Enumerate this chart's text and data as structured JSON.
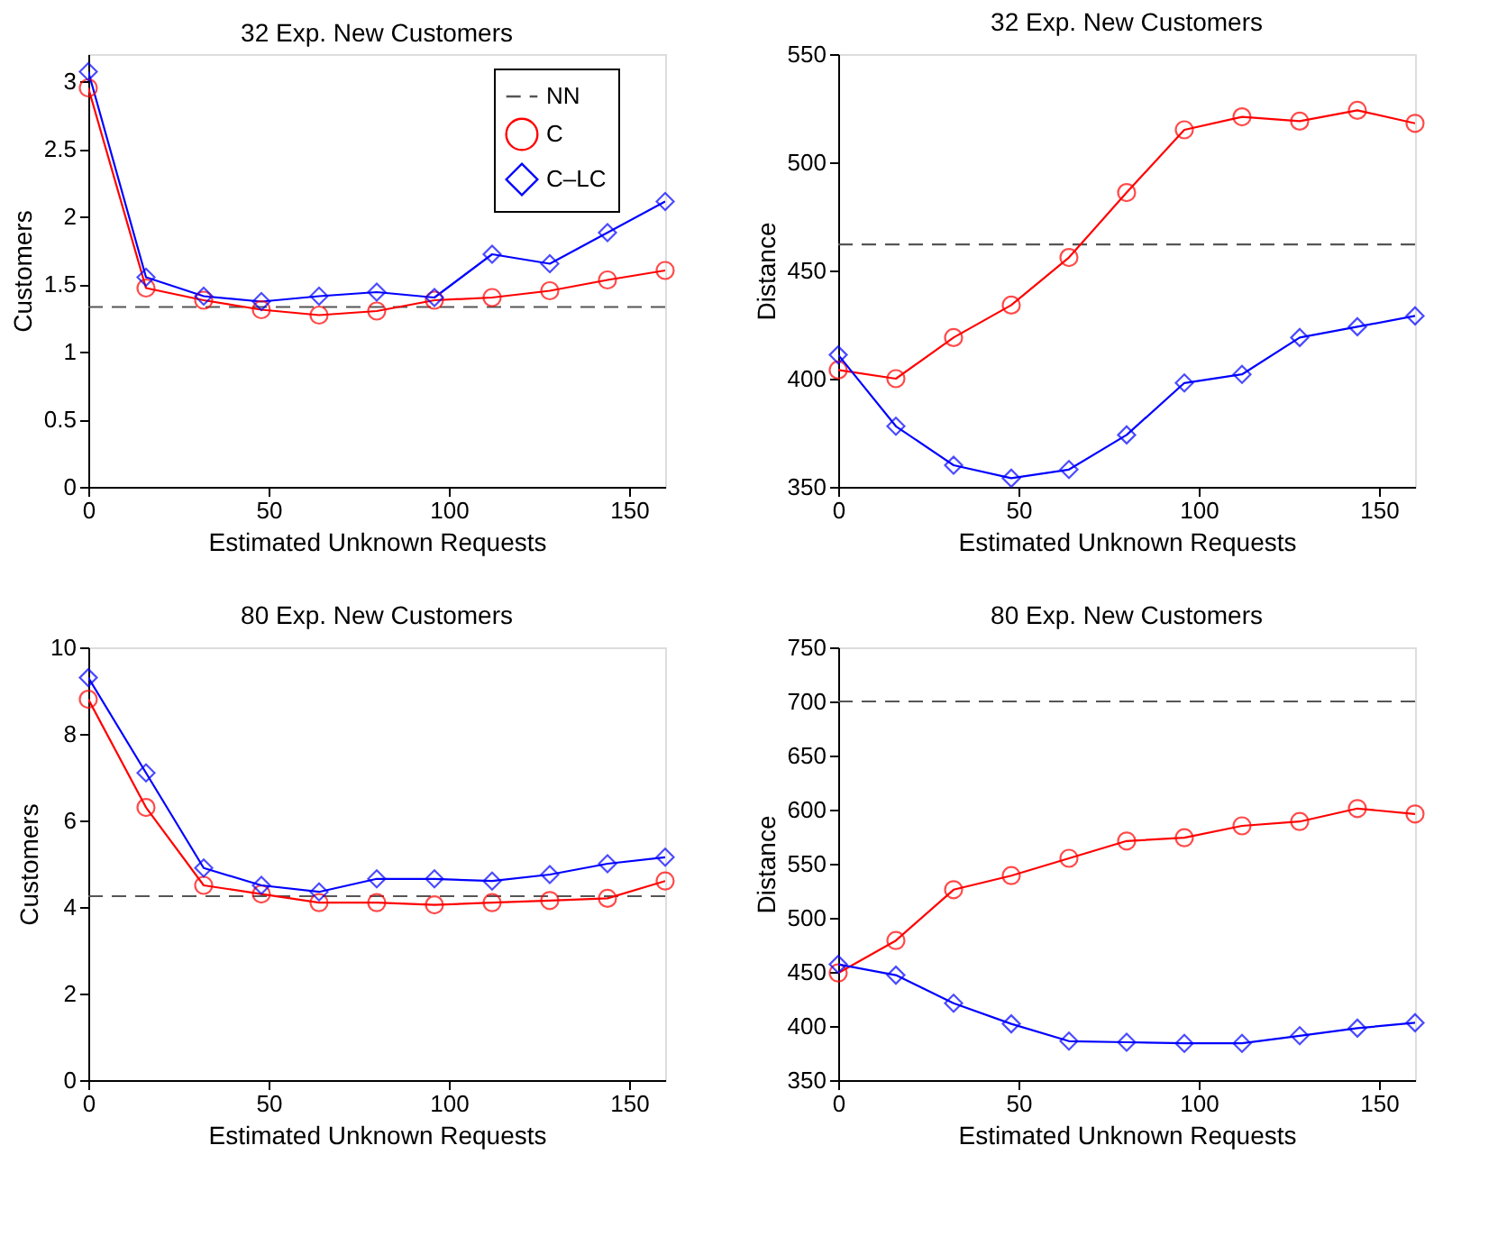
{
  "chart_data": [
    {
      "type": "line",
      "title": "32 Exp. New Customers",
      "xlabel": "Estimated Unknown Requests",
      "ylabel": "Customers",
      "x": [
        0,
        16,
        32,
        48,
        64,
        80,
        96,
        112,
        128,
        144,
        160
      ],
      "xlim": [
        0,
        160
      ],
      "xticks": [
        0,
        50,
        100,
        150
      ],
      "ylim": [
        0,
        3.2
      ],
      "yticks": [
        0,
        0.5,
        1,
        1.5,
        2,
        2.5,
        3
      ],
      "grid": false,
      "legend": "top right",
      "series": [
        {
          "name": "NN",
          "color": "#555555",
          "values": [
            1.33,
            1.33,
            1.33,
            1.33,
            1.33,
            1.33,
            1.33,
            1.33,
            1.33,
            1.33,
            1.33
          ],
          "line_style": "dashed",
          "marker": "none"
        },
        {
          "name": "C",
          "color": "#ff0000",
          "values": [
            2.95,
            1.47,
            1.38,
            1.31,
            1.27,
            1.3,
            1.38,
            1.4,
            1.45,
            1.53,
            1.6
          ],
          "line_style": "solid",
          "marker": "circle"
        },
        {
          "name": "C–LC",
          "color": "#0000ff",
          "values": [
            3.07,
            1.55,
            1.41,
            1.37,
            1.41,
            1.44,
            1.4,
            1.72,
            1.65,
            1.88,
            2.11
          ],
          "line_style": "solid",
          "marker": "diamond"
        }
      ]
    },
    {
      "type": "line",
      "title": "32 Exp. New Customers",
      "xlabel": "Estimated Unknown Requests",
      "ylabel": "Distance",
      "x": [
        0,
        16,
        32,
        48,
        64,
        80,
        96,
        112,
        128,
        144,
        160
      ],
      "xlim": [
        0,
        160
      ],
      "xticks": [
        0,
        50,
        100,
        150
      ],
      "ylim": [
        350,
        550
      ],
      "yticks": [
        350,
        400,
        450,
        500,
        550
      ],
      "grid": false,
      "legend": false,
      "series": [
        {
          "color": "#555555",
          "values": [
            462,
            462,
            462,
            462,
            462,
            462,
            462,
            462,
            462,
            462,
            462
          ],
          "line_style": "dashed",
          "marker": "none"
        },
        {
          "color": "#ff0000",
          "values": [
            404,
            400,
            419,
            434,
            456,
            486,
            515,
            521,
            519,
            524,
            518
          ],
          "line_style": "solid",
          "marker": "circle"
        },
        {
          "color": "#0000ff",
          "values": [
            411,
            378,
            360,
            354,
            358,
            374,
            398,
            402,
            419,
            424,
            429
          ],
          "line_style": "solid",
          "marker": "diamond"
        }
      ]
    },
    {
      "type": "line",
      "title": "80 Exp. New Customers",
      "xlabel": "Estimated Unknown Requests",
      "ylabel": "Customers",
      "x": [
        0,
        16,
        32,
        48,
        64,
        80,
        96,
        112,
        128,
        144,
        160
      ],
      "xlim": [
        0,
        160
      ],
      "xticks": [
        0,
        50,
        100,
        150
      ],
      "ylim": [
        0,
        10
      ],
      "yticks": [
        0,
        2,
        4,
        6,
        8,
        10
      ],
      "grid": false,
      "legend": false,
      "series": [
        {
          "color": "#555555",
          "values": [
            4.25,
            4.25,
            4.25,
            4.25,
            4.25,
            4.25,
            4.25,
            4.25,
            4.25,
            4.25,
            4.25
          ],
          "line_style": "dashed",
          "marker": "none"
        },
        {
          "color": "#ff0000",
          "values": [
            8.8,
            6.3,
            4.5,
            4.3,
            4.1,
            4.1,
            4.05,
            4.1,
            4.15,
            4.2,
            4.6
          ],
          "line_style": "solid",
          "marker": "circle"
        },
        {
          "color": "#0000ff",
          "values": [
            9.3,
            7.1,
            4.9,
            4.5,
            4.35,
            4.65,
            4.65,
            4.6,
            4.75,
            5.0,
            5.15
          ],
          "line_style": "solid",
          "marker": "diamond"
        }
      ]
    },
    {
      "type": "line",
      "title": "80 Exp. New Customers",
      "xlabel": "Estimated Unknown Requests",
      "ylabel": "Distance",
      "x": [
        0,
        16,
        32,
        48,
        64,
        80,
        96,
        112,
        128,
        144,
        160
      ],
      "xlim": [
        0,
        160
      ],
      "xticks": [
        0,
        50,
        100,
        150
      ],
      "ylim": [
        350,
        750
      ],
      "yticks": [
        350,
        400,
        450,
        500,
        550,
        600,
        650,
        700,
        750
      ],
      "grid": false,
      "legend": false,
      "series": [
        {
          "color": "#555555",
          "values": [
            700,
            700,
            700,
            700,
            700,
            700,
            700,
            700,
            700,
            700,
            700
          ],
          "line_style": "dashed",
          "marker": "none"
        },
        {
          "color": "#ff0000",
          "values": [
            449,
            479,
            526,
            539,
            555,
            571,
            574,
            585,
            589,
            601,
            596
          ],
          "line_style": "solid",
          "marker": "circle"
        },
        {
          "color": "#0000ff",
          "values": [
            457,
            447,
            421,
            402,
            386,
            385,
            384,
            384,
            391,
            398,
            403
          ],
          "line_style": "solid",
          "marker": "diamond"
        }
      ]
    }
  ]
}
